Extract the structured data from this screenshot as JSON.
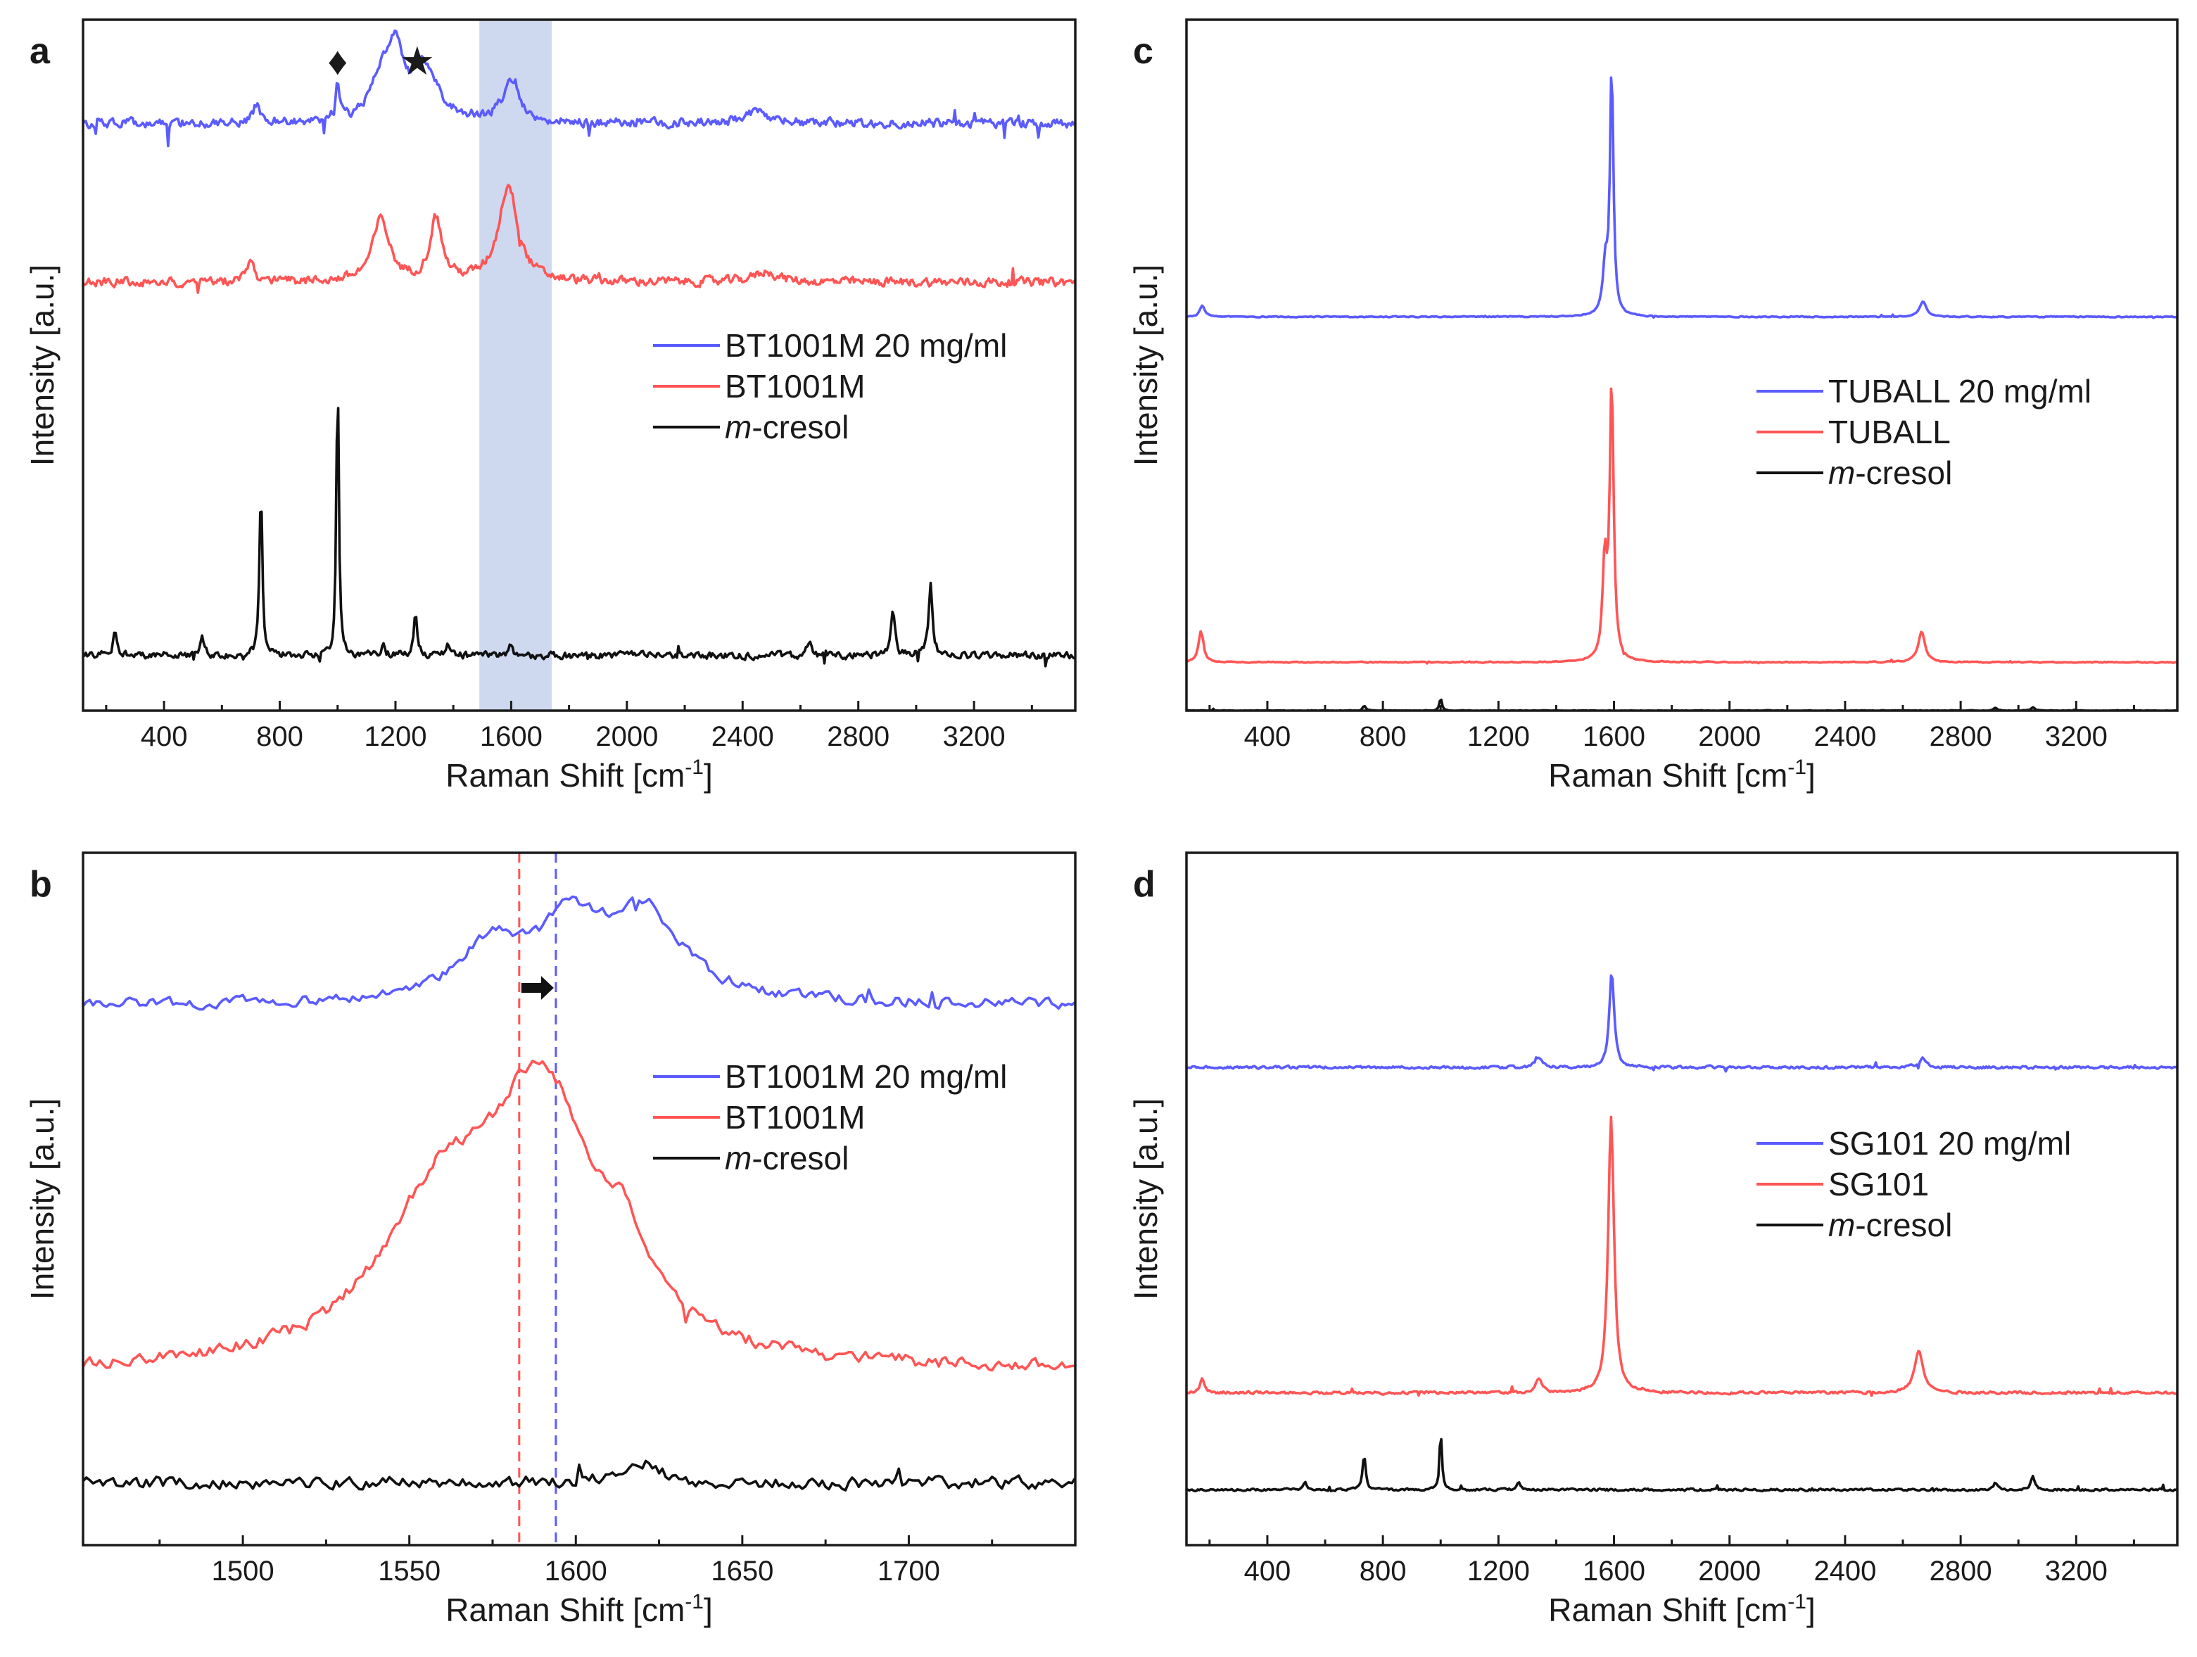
{
  "figure": {
    "colors": {
      "blue": "#5b5bff",
      "red": "#ff5555",
      "black": "#111111",
      "highlight": "#b9c8e8"
    }
  },
  "chart_data": [
    {
      "panel": "a",
      "type": "line",
      "xlabel": "Raman Shift [cm",
      "xlabel_sup": "-1",
      "xlabel_end": "]",
      "ylabel": "Intensity [a.u.]",
      "xlim": [
        120,
        3550
      ],
      "ylim": [
        0,
        100
      ],
      "xticks": [
        400,
        800,
        1200,
        1600,
        2000,
        2400,
        2800,
        3200
      ],
      "grid": false,
      "legend_position": "middle-right",
      "legend": [
        "BT1001M 20 mg/ml",
        "BT1001M",
        "m-cresol"
      ],
      "legend_italic_prefix": [
        "",
        "",
        "m"
      ],
      "legend_suffix": [
        "BT1001M 20 mg/ml",
        "BT1001M",
        "-cresol"
      ],
      "highlight_band": [
        1490,
        1740
      ],
      "markers": [
        {
          "symbol": "♦",
          "x": 1000
        },
        {
          "symbol": "★",
          "x": 1275
        }
      ],
      "series": [
        {
          "name": "BT1001M 20 mg/ml",
          "color": "blue",
          "baseline": 85,
          "noise": 1.0,
          "seed": 11,
          "peaks": [
            [
              720,
              2.5,
              14
            ],
            [
              1000,
              5,
              8
            ],
            [
              1150,
              6,
              40
            ],
            [
              1200,
              9,
              30
            ],
            [
              1300,
              8,
              55
            ],
            [
              1600,
              6,
              35
            ],
            [
              2450,
              1.5,
              50
            ]
          ]
        },
        {
          "name": "BT1001M",
          "color": "red",
          "baseline": 62,
          "noise": 1.0,
          "seed": 23,
          "peaks": [
            [
              700,
              3,
              15
            ],
            [
              1150,
              9,
              35
            ],
            [
              1340,
              9,
              25
            ],
            [
              1590,
              14,
              40
            ],
            [
              2480,
              1.5,
              50
            ]
          ]
        },
        {
          "name": "m-cresol",
          "color": "black",
          "baseline": 8,
          "noise": 0.8,
          "seed": 37,
          "peaks": [
            [
              230,
              3,
              8
            ],
            [
              530,
              3,
              6
            ],
            [
              735,
              24,
              6
            ],
            [
              1000,
              42,
              5
            ],
            [
              1160,
              2,
              6
            ],
            [
              1270,
              6,
              7
            ],
            [
              1380,
              2,
              6
            ],
            [
              1600,
              1.5,
              8
            ],
            [
              2630,
              2,
              8
            ],
            [
              2920,
              7,
              8
            ],
            [
              3050,
              10,
              8
            ]
          ]
        }
      ]
    },
    {
      "panel": "b",
      "type": "line",
      "xlabel": "Raman Shift [cm",
      "xlabel_sup": "-1",
      "xlabel_end": "]",
      "ylabel": "Intensity [a.u.]",
      "xlim": [
        1452,
        1750
      ],
      "ylim": [
        0,
        100
      ],
      "xticks": [
        1500,
        1550,
        1600,
        1650,
        1700
      ],
      "grid": false,
      "legend_position": "middle-right",
      "legend": [
        "BT1001M 20 mg/ml",
        "BT1001M",
        "m-cresol"
      ],
      "legend_italic_prefix": [
        "",
        "",
        "m"
      ],
      "legend_suffix": [
        "BT1001M 20 mg/ml",
        "BT1001M",
        "-cresol"
      ],
      "vlines": [
        {
          "x": 1583,
          "color": "red"
        },
        {
          "x": 1594,
          "color": "blue"
        }
      ],
      "arrow_from": 1583,
      "arrow_to": 1594,
      "series": [
        {
          "name": "BT1001M 20 mg/ml",
          "color": "blue",
          "baseline": 78,
          "noise": 1.2,
          "seed": 5,
          "step": 1,
          "peaks": [
            [
              1575,
              8,
              12
            ],
            [
              1598,
              10,
              10
            ],
            [
              1620,
              13,
              14
            ]
          ]
        },
        {
          "name": "BT1001M",
          "color": "red",
          "baseline": 25,
          "noise": 1.5,
          "seed": 9,
          "step": 1,
          "peaks": [
            [
              1560,
              22,
              22
            ],
            [
              1590,
              36,
              18
            ],
            [
              1615,
              10,
              10
            ]
          ]
        },
        {
          "name": "m-cresol",
          "color": "black",
          "baseline": 9,
          "noise": 1.4,
          "seed": 17,
          "step": 1,
          "peaks": [
            [
              1620,
              3,
              6
            ]
          ]
        }
      ]
    },
    {
      "panel": "c",
      "type": "line",
      "xlabel": "Raman Shift [cm",
      "xlabel_sup": "-1",
      "xlabel_end": "]",
      "ylabel": "Intensity [a.u.]",
      "xlim": [
        120,
        3550
      ],
      "ylim": [
        0,
        100
      ],
      "xticks": [
        400,
        800,
        1200,
        1600,
        2000,
        2400,
        2800,
        3200
      ],
      "grid": false,
      "legend_position": "middle-right",
      "legend": [
        "TUBALL 20 mg/ml",
        "TUBALL",
        "m-cresol"
      ],
      "legend_italic_prefix": [
        "",
        "",
        "m"
      ],
      "legend_suffix": [
        "TUBALL 20 mg/ml",
        "TUBALL",
        "-cresol"
      ],
      "series": [
        {
          "name": "TUBALL 20 mg/ml",
          "color": "blue",
          "baseline": 57,
          "noise": 0.12,
          "seed": 3,
          "peaks": [
            [
              175,
              1.7,
              10
            ],
            [
              1570,
              7,
              10
            ],
            [
              1592,
              36,
              7
            ],
            [
              2670,
              2.2,
              14
            ]
          ]
        },
        {
          "name": "TUBALL",
          "color": "red",
          "baseline": 7,
          "noise": 0.12,
          "seed": 7,
          "peaks": [
            [
              170,
              4.5,
              10
            ],
            [
              1568,
              14,
              9
            ],
            [
              1592,
              40,
              8
            ],
            [
              2665,
              4.5,
              14
            ]
          ]
        },
        {
          "name": "m-cresol",
          "color": "black",
          "baseline": 0,
          "noise": 0.08,
          "seed": 13,
          "peaks": [
            [
              735,
              0.7,
              6
            ],
            [
              1000,
              1.8,
              5
            ],
            [
              2920,
              0.4,
              8
            ],
            [
              3050,
              0.5,
              8
            ]
          ]
        }
      ]
    },
    {
      "panel": "d",
      "type": "line",
      "xlabel": "Raman Shift [cm",
      "xlabel_sup": "-1",
      "xlabel_end": "]",
      "ylabel": "Intensity [a.u.]",
      "xlim": [
        120,
        3550
      ],
      "ylim": [
        0,
        100
      ],
      "xticks": [
        400,
        800,
        1200,
        1600,
        2000,
        2400,
        2800,
        3200
      ],
      "grid": false,
      "legend_position": "middle-right",
      "legend": [
        "SG101 20 mg/ml",
        "SG101",
        "m-cresol"
      ],
      "legend_italic_prefix": [
        "",
        "",
        "m"
      ],
      "legend_suffix": [
        "SG101 20 mg/ml",
        "SG101",
        "-cresol"
      ],
      "series": [
        {
          "name": "SG101 20 mg/ml",
          "color": "blue",
          "baseline": 69,
          "noise": 0.3,
          "seed": 19,
          "peaks": [
            [
              1340,
              1.5,
              14
            ],
            [
              1592,
              14,
              10
            ],
            [
              2670,
              1.3,
              16
            ]
          ]
        },
        {
          "name": "SG101",
          "color": "red",
          "baseline": 22,
          "noise": 0.3,
          "seed": 29,
          "peaks": [
            [
              175,
              2,
              10
            ],
            [
              1340,
              2,
              12
            ],
            [
              1590,
              40,
              12
            ],
            [
              2655,
              6,
              18
            ]
          ]
        },
        {
          "name": "m-cresol",
          "color": "black",
          "baseline": 8,
          "noise": 0.25,
          "seed": 31,
          "peaks": [
            [
              530,
              1,
              6
            ],
            [
              735,
              5,
              6
            ],
            [
              1000,
              8.5,
              5
            ],
            [
              1270,
              1,
              7
            ],
            [
              2920,
              1,
              8
            ],
            [
              3050,
              2,
              8
            ]
          ]
        }
      ]
    }
  ]
}
